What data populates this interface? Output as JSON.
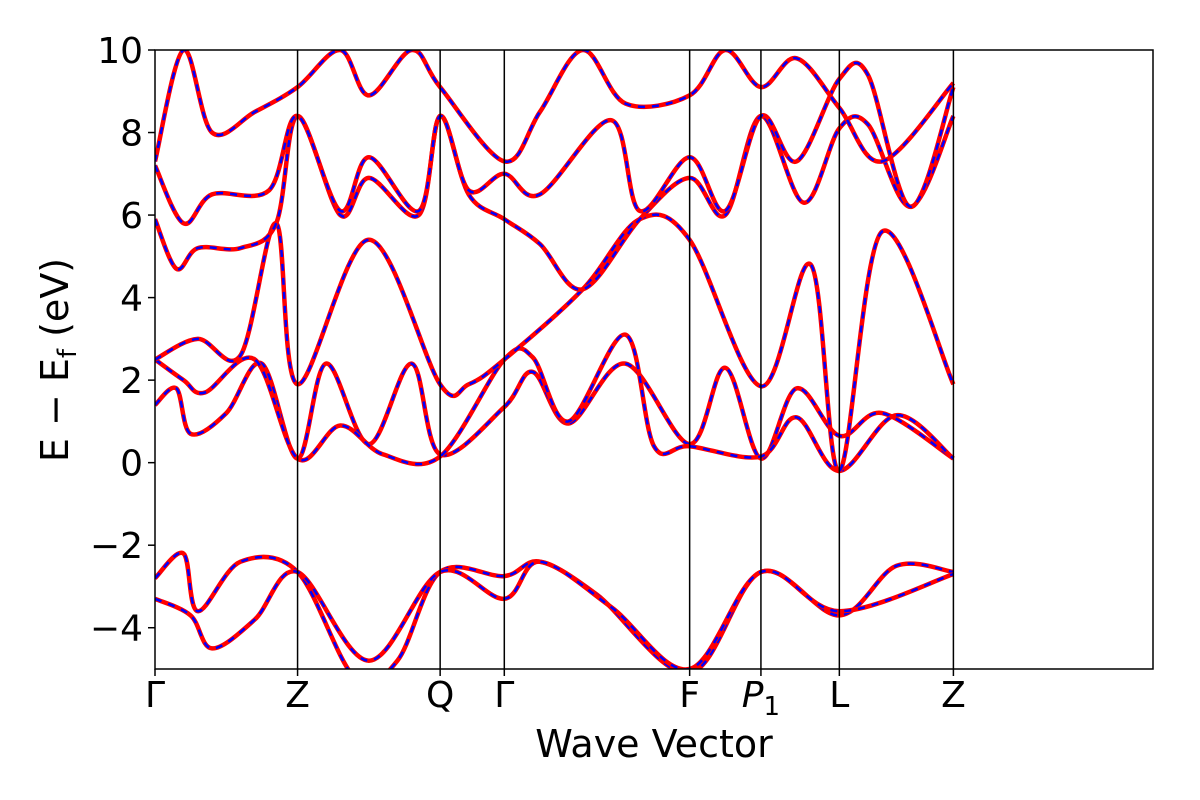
{
  "chart_data": {
    "type": "line",
    "title": "",
    "xlabel": "Wave Vector",
    "ylabel": "E − E_f (eV)",
    "ylabel_main": "E  −  E",
    "ylabel_sub": "f",
    "ylabel_tail": " (eV)",
    "ylim": [
      -5,
      10
    ],
    "yticks": [
      10,
      8,
      6,
      4,
      2,
      0,
      -2,
      -4
    ],
    "ytick_labels": [
      "10",
      "8",
      "6",
      "4",
      "2",
      "0",
      "−2",
      "−4"
    ],
    "x_range": [
      0,
      7
    ],
    "kpoints": [
      {
        "label": "Γ",
        "x": 0
      },
      {
        "label": "Z",
        "x": 1
      },
      {
        "label": "Q",
        "x": 2
      },
      {
        "label": "Γ",
        "x": 2.45
      },
      {
        "label": "F",
        "x": 3.75
      },
      {
        "label": "P",
        "sub": "1",
        "x": 4.25
      },
      {
        "label": "L",
        "x": 4.8
      },
      {
        "label": "Z",
        "x": 5.6
      }
    ],
    "grid": false,
    "legend": "none",
    "line_style": "red solid line overlaid with blue dashed line",
    "colors": {
      "solid": "#ff0000",
      "dashed": "#0000ff"
    },
    "series": [
      {
        "points": [
          [
            0,
            -2.8
          ],
          [
            0.2,
            -2.2
          ],
          [
            0.3,
            -3.6
          ],
          [
            0.6,
            -2.4
          ],
          [
            1,
            -2.65
          ],
          [
            1.4,
            -5.2
          ],
          [
            1.7,
            -4.8
          ],
          [
            2,
            -2.65
          ],
          [
            2.45,
            -2.75
          ],
          [
            2.7,
            -2.4
          ],
          [
            3.1,
            -3.2
          ],
          [
            3.75,
            -5.1
          ],
          [
            4.25,
            -2.65
          ],
          [
            4.8,
            -3.7
          ],
          [
            5.2,
            -2.5
          ],
          [
            5.6,
            -2.65
          ]
        ]
      },
      {
        "points": [
          [
            0,
            -3.3
          ],
          [
            0.25,
            -3.7
          ],
          [
            0.4,
            -4.5
          ],
          [
            0.7,
            -3.8
          ],
          [
            1,
            -2.65
          ],
          [
            1.5,
            -4.8
          ],
          [
            2,
            -2.65
          ],
          [
            2.45,
            -3.3
          ],
          [
            2.7,
            -2.4
          ],
          [
            3.2,
            -3.5
          ],
          [
            3.75,
            -5.0
          ],
          [
            4.25,
            -2.65
          ],
          [
            4.8,
            -3.6
          ],
          [
            5.6,
            -2.7
          ]
        ]
      },
      {
        "points": [
          [
            0,
            1.4
          ],
          [
            0.15,
            1.8
          ],
          [
            0.25,
            0.7
          ],
          [
            0.5,
            1.2
          ],
          [
            0.75,
            2.4
          ],
          [
            1,
            0.1
          ],
          [
            1.2,
            2.4
          ],
          [
            1.5,
            0.45
          ],
          [
            1.8,
            2.4
          ],
          [
            2,
            0.2
          ],
          [
            2.45,
            1.35
          ],
          [
            2.65,
            2.2
          ],
          [
            2.9,
            0.95
          ],
          [
            3.3,
            2.4
          ],
          [
            3.75,
            0.45
          ],
          [
            4.0,
            2.3
          ],
          [
            4.25,
            0.1
          ],
          [
            4.5,
            1.8
          ],
          [
            4.8,
            0.65
          ],
          [
            5.1,
            1.2
          ],
          [
            5.6,
            0.1
          ]
        ]
      },
      {
        "points": [
          [
            0,
            2.5
          ],
          [
            0.2,
            2.0
          ],
          [
            0.35,
            1.7
          ],
          [
            0.7,
            2.5
          ],
          [
            1,
            0.1
          ],
          [
            1.3,
            0.9
          ],
          [
            1.6,
            0.2
          ],
          [
            2,
            0.15
          ],
          [
            2.45,
            2.5
          ],
          [
            2.65,
            2.55
          ],
          [
            2.9,
            1.0
          ],
          [
            3.3,
            3.1
          ],
          [
            3.5,
            0.4
          ],
          [
            3.75,
            0.4
          ],
          [
            4.25,
            0.15
          ],
          [
            4.5,
            1.1
          ],
          [
            4.8,
            -0.2
          ],
          [
            5.2,
            1.15
          ],
          [
            5.6,
            0.1
          ]
        ]
      },
      {
        "points": [
          [
            0,
            2.5
          ],
          [
            0.3,
            3.0
          ],
          [
            0.6,
            2.6
          ],
          [
            0.85,
            5.8
          ],
          [
            1,
            1.9
          ],
          [
            1.5,
            5.4
          ],
          [
            2,
            1.9
          ],
          [
            2.2,
            1.9
          ],
          [
            2.45,
            2.5
          ],
          [
            3.0,
            4.2
          ],
          [
            3.4,
            5.9
          ],
          [
            3.75,
            5.4
          ],
          [
            4.25,
            1.85
          ],
          [
            4.6,
            4.8
          ],
          [
            4.8,
            -0.2
          ],
          [
            5.1,
            5.6
          ],
          [
            5.6,
            1.9
          ]
        ]
      },
      {
        "points": [
          [
            0,
            5.9
          ],
          [
            0.15,
            4.7
          ],
          [
            0.3,
            5.2
          ],
          [
            0.6,
            5.2
          ],
          [
            0.85,
            5.8
          ],
          [
            1,
            8.4
          ],
          [
            1.3,
            6.0
          ],
          [
            1.5,
            6.9
          ],
          [
            1.85,
            6.0
          ],
          [
            2,
            8.4
          ],
          [
            2.2,
            6.5
          ],
          [
            2.45,
            5.9
          ],
          [
            2.7,
            5.3
          ],
          [
            3.0,
            4.2
          ],
          [
            3.4,
            5.9
          ],
          [
            3.75,
            6.9
          ],
          [
            4.0,
            6.0
          ],
          [
            4.25,
            8.4
          ],
          [
            4.55,
            6.3
          ],
          [
            4.8,
            8.1
          ],
          [
            5.0,
            8.2
          ],
          [
            5.3,
            6.2
          ],
          [
            5.6,
            8.4
          ]
        ]
      },
      {
        "points": [
          [
            0,
            7.2
          ],
          [
            0.2,
            5.8
          ],
          [
            0.4,
            6.5
          ],
          [
            0.8,
            6.6
          ],
          [
            1,
            8.4
          ],
          [
            1.3,
            6.1
          ],
          [
            1.5,
            7.4
          ],
          [
            1.85,
            6.1
          ],
          [
            2,
            8.4
          ],
          [
            2.2,
            6.6
          ],
          [
            2.45,
            7.0
          ],
          [
            2.7,
            6.5
          ],
          [
            3.2,
            8.3
          ],
          [
            3.4,
            6.1
          ],
          [
            3.75,
            7.4
          ],
          [
            4.0,
            6.1
          ],
          [
            4.25,
            8.4
          ],
          [
            4.5,
            7.3
          ],
          [
            4.8,
            9.3
          ],
          [
            5.0,
            9.4
          ],
          [
            5.3,
            6.2
          ],
          [
            5.6,
            9.1
          ]
        ]
      },
      {
        "points": [
          [
            0,
            7.3
          ],
          [
            0.2,
            10
          ],
          [
            0.4,
            8.0
          ],
          [
            0.7,
            8.5
          ],
          [
            1,
            9.1
          ],
          [
            1.3,
            10
          ],
          [
            1.5,
            8.9
          ],
          [
            1.8,
            10
          ],
          [
            2,
            9.1
          ],
          [
            2.45,
            7.3
          ],
          [
            2.7,
            8.5
          ],
          [
            3.0,
            10
          ],
          [
            3.3,
            8.7
          ],
          [
            3.75,
            8.9
          ],
          [
            4.0,
            10
          ],
          [
            4.25,
            9.1
          ],
          [
            4.5,
            9.8
          ],
          [
            4.8,
            8.6
          ],
          [
            5.1,
            7.3
          ],
          [
            5.6,
            9.2
          ]
        ]
      }
    ]
  }
}
